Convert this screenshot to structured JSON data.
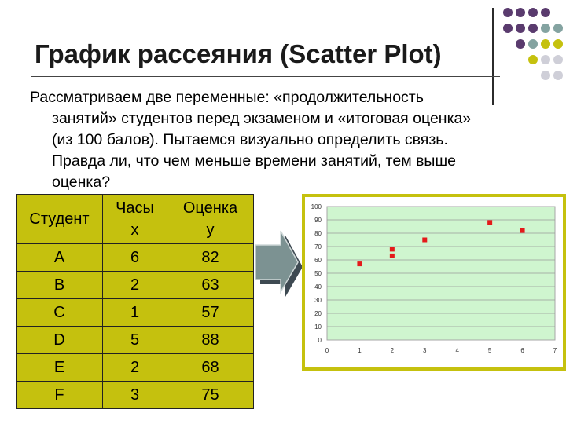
{
  "slide": {
    "title": "График рассеяния (Scatter Plot)",
    "paragraph_lines": [
      "Рассматриваем две переменные: «продолжительность",
      "занятий» студентов перед экзаменом и «итоговая оценка»",
      "(из 100 балов). Пытаемся визуально определить связь.",
      "Правда ли, что чем меньше времени занятий, тем выше",
      "оценка?"
    ],
    "colors": {
      "table_bg": "#c5c10e",
      "plot_bg": "#cff5cf",
      "chart_frame": "#c5c10e",
      "marker": "#e41a1a",
      "dot_purple": "#5a3b6e",
      "dot_teal": "#84a3a1",
      "dot_olive": "#c5c10e",
      "dot_grey": "#cfcfd8"
    }
  },
  "table": {
    "header": {
      "student": "Студент",
      "hours": "Часы",
      "hours_var": "x",
      "score": "Оценка",
      "score_var": "y"
    },
    "rows": [
      {
        "student": "A",
        "hours": "6",
        "score": "82"
      },
      {
        "student": "B",
        "hours": "2",
        "score": "63"
      },
      {
        "student": "C",
        "hours": "1",
        "score": "57"
      },
      {
        "student": "D",
        "hours": "5",
        "score": "88"
      },
      {
        "student": "E",
        "hours": "2",
        "score": "68"
      },
      {
        "student": "F",
        "hours": "3",
        "score": "75"
      }
    ]
  },
  "chart_data": {
    "type": "scatter",
    "x": [
      6,
      2,
      1,
      5,
      2,
      3
    ],
    "y": [
      82,
      63,
      57,
      88,
      68,
      75
    ],
    "xlim": [
      0,
      7
    ],
    "ylim": [
      0,
      100
    ],
    "xticks": [
      "0",
      "1",
      "2",
      "3",
      "4",
      "5",
      "6",
      "7"
    ],
    "yticks": [
      "0",
      "10",
      "20",
      "30",
      "40",
      "50",
      "60",
      "70",
      "80",
      "90",
      "100"
    ],
    "grid": "horizontal",
    "legend": "none"
  }
}
